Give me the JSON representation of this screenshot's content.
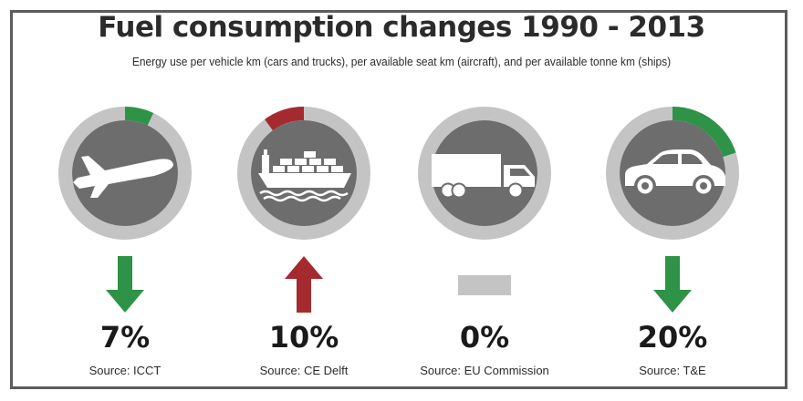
{
  "chart_data": {
    "type": "infographic",
    "title": "Fuel consumption changes 1990 - 2013",
    "subtitle": "Energy use per vehicle km (cars and trucks), per available seat km (aircraft), and per available tonne km (ships)",
    "items": [
      {
        "mode": "aircraft",
        "icon": "airplane-icon",
        "change": -7,
        "direction": "down",
        "label": "7%",
        "source": "Source: ICCT",
        "color": "#2e9347"
      },
      {
        "mode": "ships",
        "icon": "ship-icon",
        "change": 10,
        "direction": "up",
        "label": "10%",
        "source": "Source: CE Delft",
        "color": "#a52a2f"
      },
      {
        "mode": "trucks",
        "icon": "truck-icon",
        "change": 0,
        "direction": "none",
        "label": "0%",
        "source": "Source: EU Commission",
        "color": "#c4c4c4"
      },
      {
        "mode": "cars",
        "icon": "car-icon",
        "change": -20,
        "direction": "down",
        "label": "20%",
        "source": "Source: T&E",
        "color": "#2e9347"
      }
    ],
    "colors": {
      "ring": "#c4c4c4",
      "disc": "#6d6d6d",
      "icon": "#ffffff",
      "decrease": "#2e9347",
      "increase": "#a52a2f",
      "neutral": "#c4c4c4"
    }
  }
}
